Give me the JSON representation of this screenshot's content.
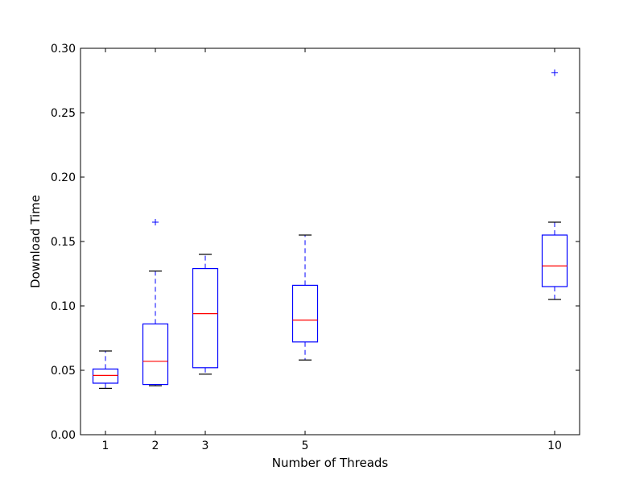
{
  "chart_data": {
    "type": "box",
    "title": "",
    "xlabel": "Number of Threads",
    "ylabel": "Download Time",
    "xlim": [
      0.5,
      10.5
    ],
    "ylim": [
      0.0,
      0.3
    ],
    "y_ticks": [
      0.0,
      0.05,
      0.1,
      0.15,
      0.2,
      0.25,
      0.3
    ],
    "y_tick_labels": [
      "0.00",
      "0.05",
      "0.10",
      "0.15",
      "0.20",
      "0.25",
      "0.30"
    ],
    "x_ticks": [
      1,
      2,
      3,
      5,
      10
    ],
    "x_tick_labels": [
      "1",
      "2",
      "3",
      "5",
      "10"
    ],
    "grid": false,
    "legend": "none",
    "colors": {
      "box": "#0000ff",
      "median": "#ff0000",
      "whisker": "#0000ff",
      "cap": "#000000",
      "outlier": "#0000ff",
      "frame": "#000000"
    },
    "boxes": [
      {
        "x": 1,
        "whisker_low": 0.036,
        "q1": 0.04,
        "median": 0.046,
        "q3": 0.051,
        "whisker_high": 0.065,
        "outliers": []
      },
      {
        "x": 2,
        "whisker_low": 0.038,
        "q1": 0.039,
        "median": 0.057,
        "q3": 0.086,
        "whisker_high": 0.127,
        "outliers": [
          0.165
        ]
      },
      {
        "x": 3,
        "whisker_low": 0.047,
        "q1": 0.052,
        "median": 0.094,
        "q3": 0.129,
        "whisker_high": 0.14,
        "outliers": []
      },
      {
        "x": 5,
        "whisker_low": 0.058,
        "q1": 0.072,
        "median": 0.089,
        "q3": 0.116,
        "whisker_high": 0.155,
        "outliers": []
      },
      {
        "x": 10,
        "whisker_low": 0.105,
        "q1": 0.115,
        "median": 0.131,
        "q3": 0.155,
        "whisker_high": 0.165,
        "outliers": [
          0.281
        ]
      }
    ]
  }
}
